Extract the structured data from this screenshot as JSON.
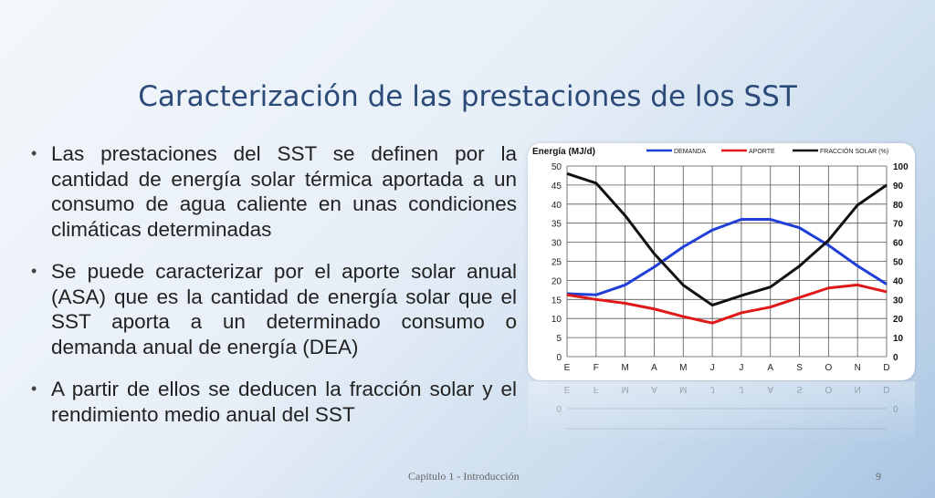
{
  "slide": {
    "title": "Caracterización de las prestaciones de los SST",
    "bullets": [
      "Las prestaciones del SST se definen por la cantidad de energía solar térmica aportada a un consumo de agua caliente en unas condiciones climáticas determinadas",
      "Se puede caracterizar por el aporte solar anual (ASA) que es la cantidad de energía solar que el SST aporta a un determinado consumo o demanda anual de energía (DEA)",
      "A partir de ellos se deducen la fracción solar y el rendimiento medio anual del SST"
    ],
    "bullet_glyph": "•",
    "footer_text": "Capitulo 1 - Introducción",
    "page_number": "9"
  },
  "chart_data": {
    "type": "line",
    "ylabel": "Energía (MJ/d)",
    "categories": [
      "E",
      "F",
      "M",
      "A",
      "M",
      "J",
      "J",
      "A",
      "S",
      "O",
      "N",
      "D"
    ],
    "ylim": [
      0,
      50
    ],
    "yticks": [
      "0",
      "5",
      "10",
      "15",
      "20",
      "25",
      "30",
      "35",
      "40",
      "45",
      "50"
    ],
    "y2lim": [
      0,
      100
    ],
    "y2ticks": [
      "0",
      "10",
      "20",
      "30",
      "40",
      "50",
      "60",
      "70",
      "80",
      "90",
      "100"
    ],
    "grid": true,
    "legend_position": "top",
    "series": [
      {
        "name": "DEMANDA",
        "color": "#1f3fd8",
        "axis": "left",
        "values": [
          16.5,
          16.2,
          18.8,
          23.5,
          28.8,
          33.2,
          36,
          36,
          33.8,
          29.2,
          23.8,
          19
        ]
      },
      {
        "name": "APORTE",
        "color": "#e01818",
        "axis": "left",
        "values": [
          16.2,
          15,
          14,
          12.5,
          10.5,
          8.8,
          11.5,
          13,
          15.5,
          18,
          18.8,
          17
        ]
      },
      {
        "name": "FRACCIÓN SOLAR (%)",
        "color": "#111111",
        "axis": "right",
        "values": [
          96,
          91,
          74,
          54,
          37.5,
          27,
          32,
          36.5,
          47.5,
          61,
          79.5,
          90
        ]
      }
    ]
  }
}
